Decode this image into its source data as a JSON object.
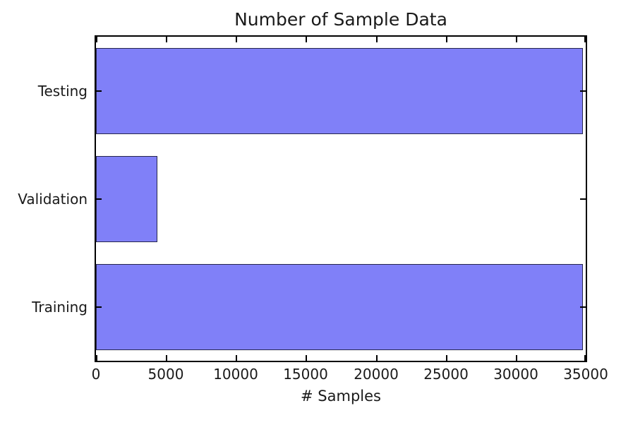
{
  "chart_data": {
    "type": "bar",
    "orientation": "horizontal",
    "title": "Number of Sample Data",
    "xlabel": "# Samples",
    "ylabel": "",
    "categories": [
      "Testing",
      "Validation",
      "Training"
    ],
    "values": [
      34799,
      4410,
      34799
    ],
    "xlim": [
      0,
      35000
    ],
    "xticks": [
      0,
      5000,
      10000,
      15000,
      20000,
      25000,
      30000,
      35000
    ],
    "bar_height_fraction": 0.8,
    "grid": false,
    "legend": null,
    "tick_direction": "in",
    "colors": {
      "bar_fill": "#8080f8",
      "bar_edge": "#26264d",
      "axis": "#000000",
      "text": "#1a1a1a",
      "background": "#ffffff"
    }
  }
}
